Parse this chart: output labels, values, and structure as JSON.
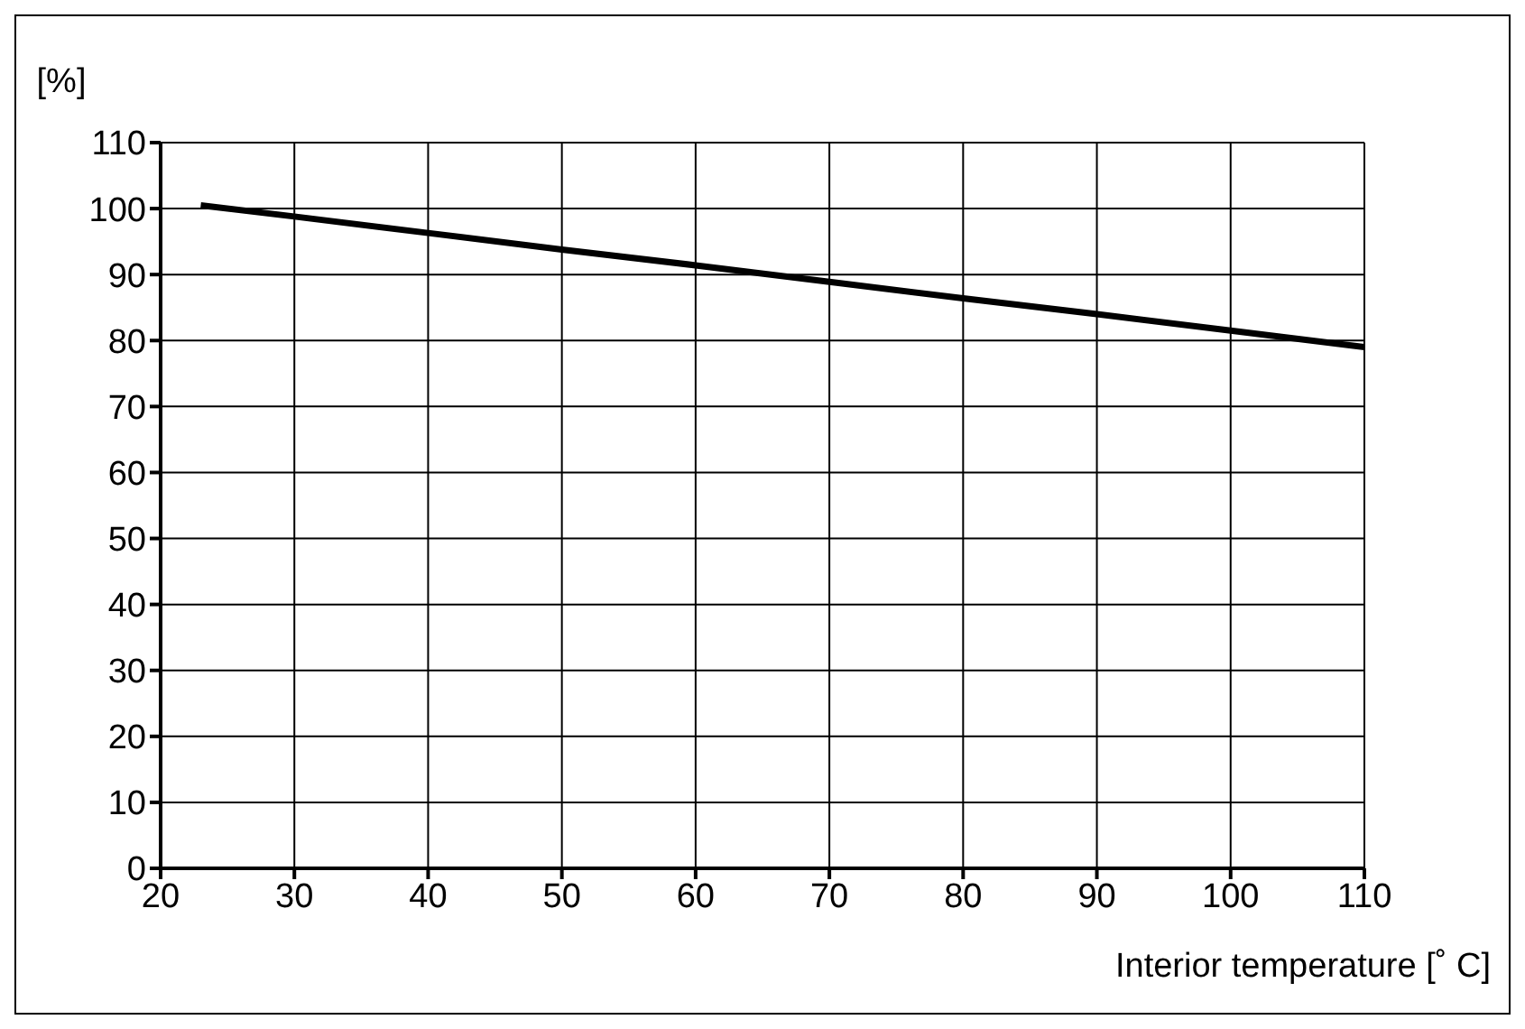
{
  "chart_data": {
    "type": "line",
    "xlabel": "Interior temperature [˚ C]",
    "ylabel": "[%]",
    "x": [
      23,
      30,
      40,
      50,
      60,
      70,
      80,
      90,
      100,
      110
    ],
    "series": [
      {
        "color": "#000000",
        "values": [
          100.5,
          98.8,
          96.3,
          93.8,
          91.4,
          88.9,
          86.4,
          84,
          81.5,
          79
        ]
      }
    ],
    "xlim": [
      20,
      110
    ],
    "xticks": [
      20,
      30,
      40,
      50,
      60,
      70,
      80,
      90,
      100,
      110
    ],
    "ylim": [
      0,
      110
    ],
    "yticks": [
      0,
      10,
      20,
      30,
      40,
      50,
      60,
      70,
      80,
      90,
      100,
      110
    ],
    "grid": true
  }
}
